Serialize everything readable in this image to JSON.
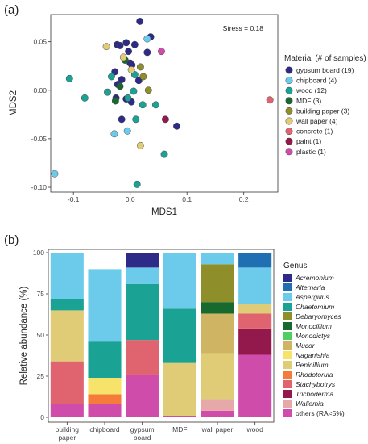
{
  "panel_a_label": "(a)",
  "panel_b_label": "(b)",
  "chart_data": [
    {
      "type": "scatter",
      "xlabel": "MDS1",
      "ylabel": "MDS2",
      "annotation": "Stress = 0.18",
      "xlim": [
        -0.14,
        0.26
      ],
      "ylim": [
        -0.105,
        0.078
      ],
      "x_ticks": [
        -0.1,
        0.0,
        0.1,
        0.2
      ],
      "x_tick_labels": [
        "-0.1",
        "0.0",
        "0.1",
        "0.2"
      ],
      "y_ticks": [
        -0.1,
        -0.05,
        0.0,
        0.05
      ],
      "y_tick_labels": [
        "-0.10",
        "-0.05",
        "0.00",
        "0.05"
      ],
      "legend_title": "Material (# of samples)",
      "legend_position": "right",
      "series": [
        {
          "name": "gypsum board (19)",
          "color": "#2e2a87",
          "points": [
            [
              0.017,
              0.071
            ],
            [
              0.036,
              0.055
            ],
            [
              -0.007,
              0.049
            ],
            [
              -0.023,
              0.047
            ],
            [
              -0.018,
              0.046
            ],
            [
              0.008,
              0.047
            ],
            [
              -0.003,
              0.04
            ],
            [
              0.03,
              0.039
            ],
            [
              0.0,
              0.028
            ],
            [
              0.003,
              0.026
            ],
            [
              -0.027,
              0.019
            ],
            [
              -0.015,
              0.011
            ],
            [
              0.015,
              0.01
            ],
            [
              -0.022,
              0.006
            ],
            [
              -0.025,
              -0.008
            ],
            [
              -0.007,
              -0.009
            ],
            [
              0.002,
              -0.012
            ],
            [
              -0.015,
              -0.03
            ],
            [
              0.082,
              -0.037
            ]
          ]
        },
        {
          "name": "chipboard (4)",
          "color": "#6ccbeb",
          "points": [
            [
              0.03,
              0.053
            ],
            [
              -0.028,
              -0.045
            ],
            [
              -0.005,
              -0.042
            ],
            [
              -0.133,
              -0.086
            ]
          ]
        },
        {
          "name": "wood (12)",
          "color": "#1aa394",
          "points": [
            [
              -0.107,
              0.012
            ],
            [
              -0.08,
              -0.008
            ],
            [
              -0.04,
              -0.002
            ],
            [
              -0.033,
              0.014
            ],
            [
              0.008,
              0.016
            ],
            [
              0.006,
              -0.001
            ],
            [
              -0.004,
              -0.008
            ],
            [
              0.022,
              -0.015
            ],
            [
              0.045,
              -0.015
            ],
            [
              0.01,
              -0.03
            ],
            [
              0.06,
              -0.066
            ],
            [
              0.012,
              -0.097
            ]
          ]
        },
        {
          "name": "MDF (3)",
          "color": "#17692e",
          "points": [
            [
              -0.009,
              0.031
            ],
            [
              -0.018,
              0.004
            ],
            [
              -0.026,
              -0.011
            ]
          ]
        },
        {
          "name": "building paper (3)",
          "color": "#8e8e2a",
          "points": [
            [
              0.018,
              0.024
            ],
            [
              0.023,
              0.014
            ],
            [
              0.032,
              0.0
            ]
          ]
        },
        {
          "name": "wall paper (4)",
          "color": "#e0cb76",
          "points": [
            [
              -0.042,
              0.045
            ],
            [
              -0.012,
              0.034
            ],
            [
              0.002,
              0.021
            ],
            [
              0.018,
              -0.057
            ]
          ]
        },
        {
          "name": "concrete (1)",
          "color": "#e06470",
          "points": [
            [
              0.246,
              -0.01
            ]
          ]
        },
        {
          "name": "paint (1)",
          "color": "#93194d",
          "points": [
            [
              0.062,
              -0.03
            ]
          ]
        },
        {
          "name": "plastic (1)",
          "color": "#cf4cab",
          "points": [
            [
              0.055,
              0.04
            ]
          ]
        }
      ]
    },
    {
      "type": "bar",
      "stacked": true,
      "ylabel": "Relative abundance (%)",
      "ylim": [
        0,
        100
      ],
      "y_ticks": [
        0,
        25,
        50,
        75,
        100
      ],
      "y_tick_labels": [
        "0",
        "25",
        "50",
        "75",
        "100"
      ],
      "categories": [
        "building\npaper",
        "chipboard",
        "gypsum\nboard",
        "MDF",
        "wall paper",
        "wood"
      ],
      "legend_title": "Genus",
      "legend_position": "right",
      "series": [
        {
          "name": "others (RA<5%)",
          "italic": false,
          "color": "#cf4cab",
          "values": [
            8,
            8,
            26,
            1,
            4,
            38
          ]
        },
        {
          "name": "Wallemia",
          "italic": true,
          "color": "#e6a8a8",
          "values": [
            0,
            0,
            0,
            0,
            7,
            0
          ]
        },
        {
          "name": "Trichoderma",
          "italic": true,
          "color": "#93194d",
          "values": [
            0,
            0,
            0,
            0,
            0,
            16
          ]
        },
        {
          "name": "Stachybotrys",
          "italic": true,
          "color": "#e06470",
          "values": [
            26,
            0,
            21,
            0,
            0,
            9
          ]
        },
        {
          "name": "Rhodotorula",
          "italic": true,
          "color": "#f57b3a",
          "values": [
            0,
            6,
            0,
            0,
            0,
            0
          ]
        },
        {
          "name": "Penicillium",
          "italic": true,
          "color": "#e0cb76",
          "values": [
            31,
            0,
            0,
            32,
            28,
            6
          ]
        },
        {
          "name": "Naganishia",
          "italic": true,
          "color": "#f7e36a",
          "values": [
            0,
            10,
            0,
            0,
            0,
            0
          ]
        },
        {
          "name": "Mucor",
          "italic": true,
          "color": "#cfb563",
          "values": [
            0,
            0,
            0,
            0,
            24,
            0
          ]
        },
        {
          "name": "Monodictys",
          "italic": true,
          "color": "#4fce62",
          "values": [
            0,
            0,
            0,
            0,
            0,
            0
          ]
        },
        {
          "name": "Monocillium",
          "italic": true,
          "color": "#17692e",
          "values": [
            0,
            0,
            0,
            0,
            7,
            0
          ]
        },
        {
          "name": "Debaryomyces",
          "italic": true,
          "color": "#8e8e2a",
          "values": [
            0,
            0,
            0,
            0,
            23,
            0
          ]
        },
        {
          "name": "Chaetomium",
          "italic": true,
          "color": "#1aa394",
          "values": [
            7,
            22,
            34,
            33,
            0,
            0
          ]
        },
        {
          "name": "Aspergillus",
          "italic": true,
          "color": "#6ccbeb",
          "values": [
            28,
            44,
            10,
            34,
            7,
            22
          ]
        },
        {
          "name": "Alternaria",
          "italic": true,
          "color": "#1f6fb2",
          "values": [
            0,
            0,
            0,
            0,
            0,
            9
          ]
        },
        {
          "name": "Acremonium",
          "italic": true,
          "color": "#2e2a87",
          "values": [
            0,
            0,
            9,
            0,
            0,
            0
          ]
        }
      ]
    }
  ]
}
